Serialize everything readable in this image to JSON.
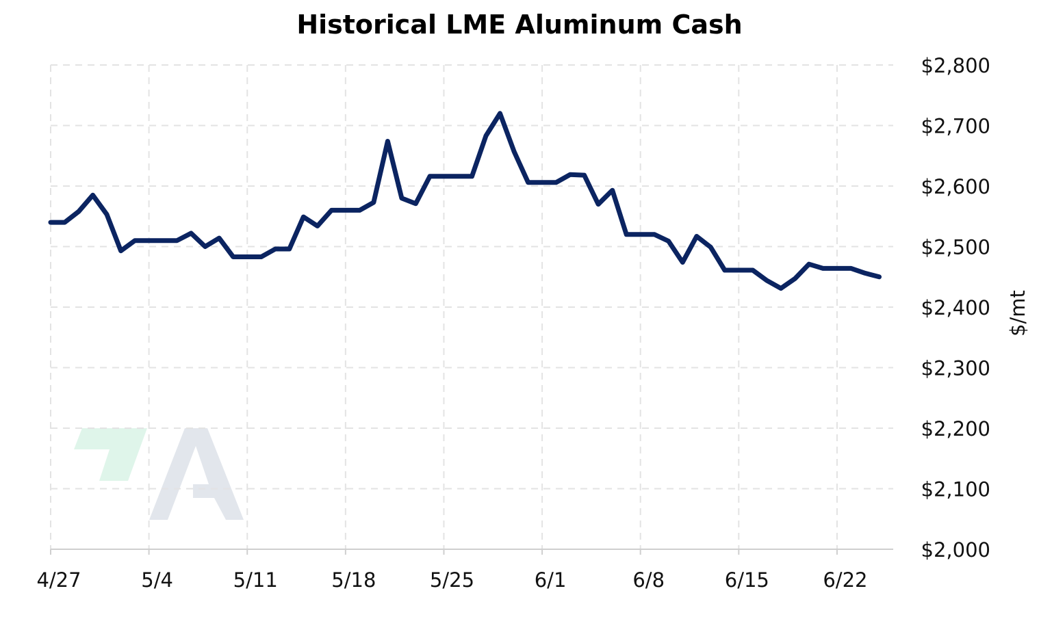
{
  "chart_data": {
    "type": "line",
    "title": "Historical LME Aluminum Cash",
    "ylabel": "$/mt",
    "xlabel": "",
    "x_tick_labels": [
      "4/27",
      "5/4",
      "5/11",
      "5/18",
      "5/25",
      "6/1",
      "6/8",
      "6/15",
      "6/22"
    ],
    "y_tick_labels": [
      "$2,000",
      "$2,100",
      "$2,200",
      "$2,300",
      "$2,400",
      "$2,500",
      "$2,600",
      "$2,700",
      "$2,800"
    ],
    "ylim": [
      2000,
      2800
    ],
    "y_ticks": [
      2000,
      2100,
      2200,
      2300,
      2400,
      2500,
      2600,
      2700,
      2800
    ],
    "xlim": [
      "2020-04-27",
      "2020-06-26"
    ],
    "y_axis_position": "right",
    "grid": true,
    "series": [
      {
        "color": "#0b2461",
        "points": [
          [
            "2020-04-27",
            2540
          ],
          [
            "2020-04-28",
            2540
          ],
          [
            "2020-04-29",
            2558
          ],
          [
            "2020-04-30",
            2585
          ],
          [
            "2020-05-01",
            2553
          ],
          [
            "2020-05-02",
            2493
          ],
          [
            "2020-05-03",
            2510
          ],
          [
            "2020-05-06",
            2510
          ],
          [
            "2020-05-07",
            2522
          ],
          [
            "2020-05-08",
            2500
          ],
          [
            "2020-05-09",
            2514
          ],
          [
            "2020-05-10",
            2483
          ],
          [
            "2020-05-12",
            2483
          ],
          [
            "2020-05-13",
            2496
          ],
          [
            "2020-05-14",
            2496
          ],
          [
            "2020-05-15",
            2549
          ],
          [
            "2020-05-16",
            2534
          ],
          [
            "2020-05-17",
            2560
          ],
          [
            "2020-05-19",
            2560
          ],
          [
            "2020-05-20",
            2573
          ],
          [
            "2020-05-21",
            2674
          ],
          [
            "2020-05-22",
            2580
          ],
          [
            "2020-05-23",
            2571
          ],
          [
            "2020-05-24",
            2616
          ],
          [
            "2020-05-27",
            2616
          ],
          [
            "2020-05-28",
            2683
          ],
          [
            "2020-05-29",
            2720
          ],
          [
            "2020-05-30",
            2657
          ],
          [
            "2020-05-31",
            2606
          ],
          [
            "2020-06-02",
            2606
          ],
          [
            "2020-06-03",
            2619
          ],
          [
            "2020-06-04",
            2618
          ],
          [
            "2020-06-05",
            2570
          ],
          [
            "2020-06-06",
            2593
          ],
          [
            "2020-06-07",
            2520
          ],
          [
            "2020-06-09",
            2520
          ],
          [
            "2020-06-10",
            2509
          ],
          [
            "2020-06-11",
            2474
          ],
          [
            "2020-06-12",
            2517
          ],
          [
            "2020-06-13",
            2499
          ],
          [
            "2020-06-14",
            2461
          ],
          [
            "2020-06-16",
            2461
          ],
          [
            "2020-06-17",
            2444
          ],
          [
            "2020-06-18",
            2431
          ],
          [
            "2020-06-19",
            2447
          ],
          [
            "2020-06-20",
            2471
          ],
          [
            "2020-06-21",
            2464
          ],
          [
            "2020-06-23",
            2464
          ],
          [
            "2020-06-24",
            2456
          ],
          [
            "2020-06-25",
            2450
          ]
        ]
      }
    ]
  },
  "watermark": {
    "accent_color": "#dff5ea",
    "letter_color": "#e2e6ec",
    "icon": "logo-icon"
  }
}
